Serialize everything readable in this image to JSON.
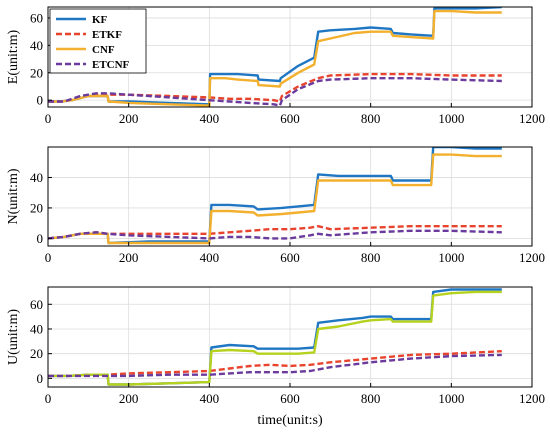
{
  "chart_data": [
    {
      "type": "line",
      "ylabel": "E(unit:m)",
      "xlabel": "",
      "xlim": [
        0,
        1200
      ],
      "ylim": [
        -5,
        68
      ],
      "xticks": [
        0,
        200,
        400,
        600,
        800,
        1000,
        1200
      ],
      "yticks": [
        0,
        20,
        40,
        60
      ],
      "grid": true,
      "legend": "top-left",
      "series": [
        {
          "name": "KF",
          "color": "#1f77c4",
          "dash": "solid",
          "x": [
            0,
            30,
            60,
            100,
            148,
            150,
            200,
            300,
            400,
            402,
            440,
            470,
            520,
            522,
            575,
            577,
            620,
            660,
            670,
            700,
            760,
            800,
            850,
            855,
            900,
            955,
            958,
            1000,
            1060,
            1125
          ],
          "y": [
            -1,
            -1,
            0,
            3,
            3,
            -1,
            -1,
            -2,
            -3,
            19,
            19,
            19,
            18,
            15,
            14,
            16,
            25,
            31,
            50,
            51,
            52,
            53,
            52,
            49,
            48,
            47,
            67,
            67,
            67,
            68
          ]
        },
        {
          "name": "ETKF",
          "color": "#e8432d",
          "dash": "6 3",
          "x": [
            0,
            40,
            80,
            120,
            148,
            200,
            300,
            400,
            450,
            500,
            560,
            575,
            580,
            620,
            670,
            700,
            800,
            900,
            1000,
            1125
          ],
          "y": [
            -1,
            -1,
            2,
            4,
            4,
            4,
            3,
            2,
            1,
            1,
            0,
            -1,
            3,
            10,
            16,
            18,
            19,
            19,
            18,
            18
          ]
        },
        {
          "name": "CNF",
          "color": "#f2b02e",
          "dash": "solid",
          "x": [
            0,
            30,
            60,
            100,
            148,
            150,
            200,
            300,
            400,
            402,
            440,
            470,
            520,
            522,
            575,
            577,
            620,
            660,
            670,
            700,
            760,
            800,
            850,
            855,
            900,
            955,
            958,
            1000,
            1060,
            1125
          ],
          "y": [
            -1,
            -1,
            0,
            3,
            3,
            -1,
            -2,
            -3,
            -4,
            16,
            16,
            15,
            14,
            11,
            10,
            12,
            20,
            26,
            43,
            45,
            49,
            50,
            50,
            47,
            46,
            45,
            65,
            65,
            64,
            64
          ]
        },
        {
          "name": "ETCNF",
          "color": "#6a3b9c",
          "dash": "6 3",
          "x": [
            0,
            40,
            80,
            120,
            148,
            200,
            300,
            400,
            450,
            500,
            560,
            575,
            580,
            620,
            670,
            700,
            800,
            900,
            1000,
            1125
          ],
          "y": [
            -1,
            -1,
            3,
            5,
            5,
            4,
            2,
            0,
            -1,
            -2,
            -3,
            -4,
            0,
            8,
            14,
            15,
            16,
            16,
            15,
            14
          ]
        }
      ]
    },
    {
      "type": "line",
      "ylabel": "N(unit:m)",
      "xlabel": "",
      "xlim": [
        0,
        1200
      ],
      "ylim": [
        -5,
        60
      ],
      "xticks": [
        0,
        200,
        400,
        600,
        800,
        1000,
        1200
      ],
      "yticks": [
        0,
        20,
        40
      ],
      "grid": true,
      "series": [
        {
          "name": "KF",
          "color": "#1f77c4",
          "dash": "solid",
          "x": [
            0,
            40,
            80,
            120,
            148,
            150,
            250,
            350,
            400,
            405,
            450,
            510,
            520,
            580,
            620,
            660,
            670,
            720,
            780,
            800,
            850,
            855,
            900,
            950,
            955,
            1000,
            1060,
            1125
          ],
          "y": [
            0,
            1,
            3,
            3,
            3,
            -3,
            -2,
            -2,
            -2,
            22,
            22,
            21,
            19,
            20,
            21,
            22,
            42,
            41,
            41,
            41,
            41,
            38,
            38,
            38,
            60,
            60,
            59,
            59
          ]
        },
        {
          "name": "ETKF",
          "color": "#e8432d",
          "dash": "6 3",
          "x": [
            0,
            40,
            80,
            120,
            148,
            200,
            300,
            400,
            450,
            500,
            550,
            600,
            650,
            670,
            700,
            800,
            900,
            1000,
            1125
          ],
          "y": [
            0,
            1,
            3,
            4,
            3,
            3,
            3,
            3,
            4,
            5,
            6,
            6,
            7,
            8,
            6,
            7,
            8,
            8,
            8
          ]
        },
        {
          "name": "CNF",
          "color": "#f2b02e",
          "dash": "solid",
          "x": [
            0,
            40,
            80,
            120,
            148,
            150,
            250,
            350,
            400,
            405,
            450,
            510,
            520,
            580,
            620,
            660,
            670,
            720,
            780,
            800,
            850,
            855,
            900,
            950,
            955,
            1000,
            1060,
            1125
          ],
          "y": [
            0,
            1,
            3,
            3,
            3,
            -3,
            -3,
            -3,
            -3,
            18,
            18,
            17,
            15,
            16,
            17,
            18,
            38,
            38,
            38,
            38,
            38,
            35,
            35,
            35,
            55,
            55,
            54,
            54
          ]
        },
        {
          "name": "ETCNF",
          "color": "#6a3b9c",
          "dash": "6 3",
          "x": [
            0,
            40,
            80,
            120,
            148,
            200,
            300,
            400,
            450,
            500,
            550,
            600,
            650,
            670,
            700,
            800,
            900,
            1000,
            1125
          ],
          "y": [
            0,
            1,
            3,
            4,
            3,
            2,
            1,
            0,
            1,
            1,
            0,
            0,
            2,
            3,
            2,
            4,
            5,
            5,
            4
          ]
        }
      ]
    },
    {
      "type": "line",
      "ylabel": "U(unit:m)",
      "xlabel": "time(unit:s)",
      "xlim": [
        0,
        1200
      ],
      "ylim": [
        -7,
        74
      ],
      "xticks": [
        0,
        200,
        400,
        600,
        800,
        1000,
        1200
      ],
      "yticks": [
        0,
        20,
        40,
        60
      ],
      "grid": true,
      "series": [
        {
          "name": "KF",
          "color": "#1f77c4",
          "dash": "solid",
          "x": [
            0,
            50,
            100,
            148,
            150,
            200,
            300,
            400,
            405,
            450,
            510,
            520,
            580,
            620,
            660,
            670,
            720,
            780,
            800,
            850,
            855,
            900,
            950,
            955,
            1000,
            1060,
            1125
          ],
          "y": [
            2,
            2,
            3,
            3,
            -5,
            -5,
            -4,
            -3,
            25,
            27,
            26,
            24,
            24,
            24,
            25,
            45,
            47,
            49,
            50,
            50,
            48,
            48,
            48,
            70,
            72,
            72,
            72
          ]
        },
        {
          "name": "ETKF",
          "color": "#e8432d",
          "dash": "6 3",
          "x": [
            0,
            50,
            100,
            148,
            200,
            300,
            400,
            450,
            500,
            550,
            600,
            650,
            700,
            800,
            900,
            1000,
            1125
          ],
          "y": [
            2,
            2,
            3,
            3,
            4,
            5,
            6,
            8,
            10,
            11,
            10,
            11,
            13,
            16,
            19,
            20,
            22
          ]
        },
        {
          "name": "CNF",
          "color": "#b6d11e",
          "dash": "solid",
          "x": [
            0,
            50,
            100,
            148,
            150,
            200,
            300,
            400,
            405,
            450,
            510,
            520,
            580,
            620,
            660,
            670,
            720,
            780,
            800,
            850,
            855,
            900,
            950,
            955,
            1000,
            1060,
            1125
          ],
          "y": [
            2,
            2,
            3,
            3,
            -5,
            -5,
            -4,
            -3,
            22,
            23,
            22,
            20,
            20,
            20,
            21,
            40,
            42,
            46,
            47,
            48,
            46,
            46,
            46,
            67,
            69,
            70,
            70
          ]
        },
        {
          "name": "ETCNF",
          "color": "#6a3b9c",
          "dash": "6 3",
          "x": [
            0,
            50,
            100,
            148,
            200,
            300,
            400,
            450,
            500,
            550,
            600,
            650,
            700,
            800,
            900,
            1000,
            1125
          ],
          "y": [
            2,
            2,
            2,
            2,
            2,
            3,
            3,
            4,
            5,
            5,
            5,
            6,
            9,
            13,
            16,
            18,
            19
          ]
        }
      ]
    }
  ]
}
